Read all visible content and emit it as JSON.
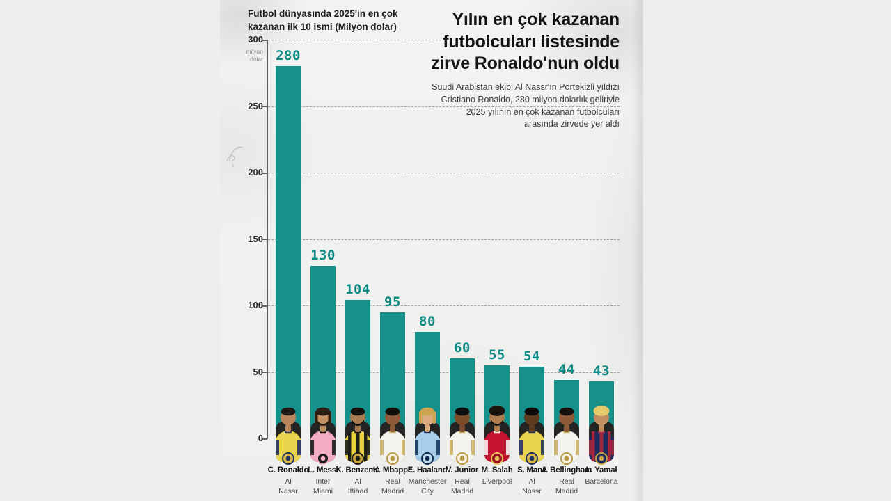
{
  "header": {
    "headline": "Yılın en çok kazanan\nfutbolcuları listesinde\nzirve Ronaldo'nun oldu",
    "subtitle": "Suudi Arabistan ekibi Al Nassr'ın Portekizli yıldızı\nCristiano Ronaldo, 280 milyon dolarlık geliriyle\n2025 yılının en çok kazanan futbolcuları\narasında zirvede yer aldı"
  },
  "chart_data": {
    "type": "bar",
    "title": "Futbol dünyasında 2025'in en çok\nkazanan ilk 10 ismi (Milyon dolar)",
    "unit_label": "milyon\ndolar",
    "xlabel": "",
    "ylabel": "milyon dolar",
    "ylim": [
      0,
      300
    ],
    "yticks": [
      300,
      250,
      200,
      150,
      100,
      50,
      0
    ],
    "grid": "dashed horizontal gridlines, y-axis on left, no x-axis line",
    "legend": "none",
    "bar_color": "#15908a",
    "value_label_color": "#0e8b84",
    "categories": [
      "C. Ronaldo",
      "L. Messi",
      "K. Benzema",
      "K. Mbappe",
      "E. Haaland",
      "V. Junior",
      "M. Salah",
      "S. Mane",
      "J. Bellingham",
      "L. Yamal"
    ],
    "clubs": [
      "Al\nNassr",
      "Inter\nMiami",
      "Al\nIttihad",
      "Real\nMadrid",
      "Manchester\nCity",
      "Real\nMadrid",
      "Liverpool",
      "Al\nNassr",
      "Real\nMadrid",
      "Barcelona"
    ],
    "values": [
      280,
      130,
      104,
      95,
      80,
      60,
      55,
      54,
      44,
      43
    ]
  },
  "avatars": [
    {
      "jersey": "#e9d54f",
      "accent": "#23335f",
      "stripes": null,
      "skin": "#b9855c",
      "hair": "#1d1a16",
      "style": "short",
      "beard": null,
      "badge": "#d9b74a",
      "ring": "#23335f"
    },
    {
      "jersey": "#f2abc2",
      "accent": "#1a1a1a",
      "stripes": null,
      "skin": "#c18e60",
      "hair": "#2a1e15",
      "style": "long",
      "beard": "#2a1e15",
      "badge": "#1a1a1a",
      "ring": "#f2abc2"
    },
    {
      "jersey": "#e9d03f",
      "accent": "#1c1c1c",
      "stripes": "#1e1e1e",
      "skin": "#a87a4e",
      "hair": "#15110e",
      "style": "short",
      "beard": "#15110e",
      "badge": "#caa63d",
      "ring": "#1c1c1c"
    },
    {
      "jersey": "#f3f2ee",
      "accent": "#c9b064",
      "stripes": null,
      "skin": "#8c5a36",
      "hair": "#14100d",
      "style": "short",
      "beard": null,
      "badge": "#f6f1df",
      "ring": "#b89a45"
    },
    {
      "jersey": "#a9cde9",
      "accent": "#13365f",
      "stripes": null,
      "skin": "#dcab80",
      "hair": "#cda44f",
      "style": "long",
      "beard": null,
      "badge": "#bcd9ee",
      "ring": "#0d2b50"
    },
    {
      "jersey": "#f3f2ee",
      "accent": "#c9b064",
      "stripes": null,
      "skin": "#7b4b2a",
      "hair": "#0f0d0b",
      "style": "short",
      "beard": null,
      "badge": "#f6f1df",
      "ring": "#b89a45"
    },
    {
      "jersey": "#c51230",
      "accent": "#f2f2f2",
      "stripes": null,
      "skin": "#b07c4c",
      "hair": "#1a120c",
      "style": "curly",
      "beard": "#1a120c",
      "badge": "#9e0e26",
      "ring": "#e3c257"
    },
    {
      "jersey": "#e9d54f",
      "accent": "#23335f",
      "stripes": null,
      "skin": "#5e3b1f",
      "hair": "#0d0b09",
      "style": "short",
      "beard": null,
      "badge": "#d9b74a",
      "ring": "#23335f"
    },
    {
      "jersey": "#f3f2ee",
      "accent": "#c9b064",
      "stripes": null,
      "skin": "#8c5a36",
      "hair": "#16110e",
      "style": "short",
      "beard": null,
      "badge": "#f6f1df",
      "ring": "#b89a45"
    },
    {
      "jersey": "#1c2a5e",
      "accent": "#a32740",
      "stripes": "#a32740",
      "skin": "#c18e60",
      "hair": "#e5cb6d",
      "style": "curly",
      "beard": null,
      "badge": "#1c2a5e",
      "ring": "#c9a23f"
    }
  ]
}
